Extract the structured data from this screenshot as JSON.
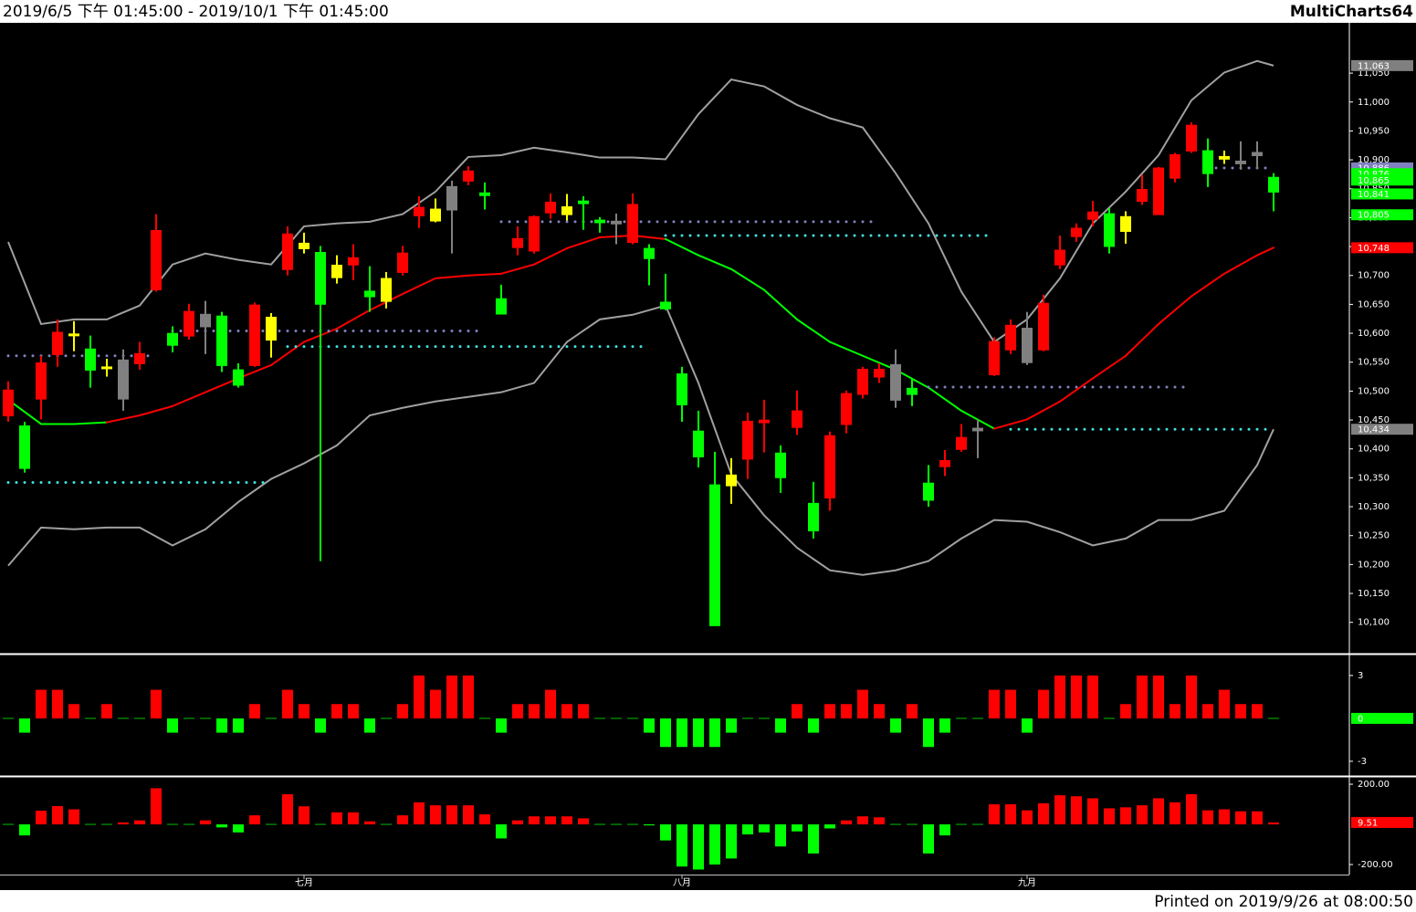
{
  "header": {
    "range": "2019/6/5 下午 01:45:00 - 2019/10/1 下午 01:45:00",
    "app": "MultiCharts64"
  },
  "footer": "Printed on 2019/9/26 at 08:00:50",
  "chart_data": [
    {
      "type": "candlestick",
      "categories": [
        null,
        null,
        null,
        null,
        null,
        null,
        null,
        null,
        null,
        null,
        null,
        null,
        null,
        null,
        null,
        null,
        null,
        null,
        "七月",
        null,
        null,
        null,
        null,
        null,
        null,
        null,
        null,
        null,
        null,
        null,
        null,
        null,
        null,
        null,
        null,
        null,
        null,
        null,
        null,
        null,
        null,
        "八月",
        null,
        null,
        null,
        null,
        null,
        null,
        null,
        null,
        null,
        null,
        null,
        null,
        null,
        null,
        null,
        null,
        null,
        null,
        null,
        null,
        "九月",
        null,
        null,
        null,
        null,
        null,
        null,
        null,
        null,
        null,
        null,
        null,
        null,
        null,
        null,
        null
      ],
      "open": [
        10458,
        10439,
        10487,
        10564,
        10597,
        10572,
        10541,
        10553,
        10548,
        10676,
        10599,
        10596,
        10632,
        10629,
        10536,
        10545,
        10589,
        10711,
        10747,
        10739,
        10697,
        10719,
        10672,
        10656,
        10706,
        10804,
        10795,
        10853,
        10864,
        10842,
        10659,
        10749,
        10743,
        10809,
        10818,
        10828,
        10795,
        10793,
        10758,
        10746,
        10653,
        10529,
        10430,
        10337,
        10337,
        10383,
        10446,
        10392,
        10438,
        10305,
        10316,
        10443,
        10495,
        10525,
        10545,
        10504,
        10340,
        10370,
        10400,
        10435,
        10529,
        10572,
        10608,
        10572,
        10719,
        10768,
        10798,
        10806,
        10777,
        10829,
        10806,
        10869,
        10916,
        10915,
        10902,
        10897,
        10912,
        10869
      ],
      "high": [
        10517,
        10447,
        10561,
        10624,
        10621,
        10596,
        10556,
        10572,
        10585,
        10806,
        10612,
        10651,
        10656,
        10637,
        10548,
        10653,
        10635,
        10785,
        10774,
        10751,
        10735,
        10754,
        10716,
        10706,
        10751,
        10837,
        10833,
        10864,
        10889,
        10861,
        10684,
        10785,
        10804,
        10842,
        10841,
        10837,
        10801,
        10807,
        10842,
        10754,
        10703,
        10542,
        10466,
        10395,
        10384,
        10463,
        10485,
        10406,
        10501,
        10343,
        10430,
        10501,
        10542,
        10548,
        10572,
        10522,
        10372,
        10398,
        10443,
        10451,
        10593,
        10624,
        10637,
        10667,
        10769,
        10790,
        10829,
        10817,
        10811,
        10874,
        10888,
        10912,
        10965,
        10937,
        10916,
        10932,
        10932,
        10877
      ],
      "low": [
        10447,
        10359,
        10451,
        10542,
        10569,
        10506,
        10525,
        10466,
        10537,
        10672,
        10567,
        10589,
        10564,
        10533,
        10506,
        10542,
        10558,
        10700,
        10738,
        10206,
        10686,
        10692,
        10637,
        10643,
        10700,
        10782,
        10792,
        10738,
        10856,
        10814,
        10634,
        10735,
        10738,
        10798,
        10795,
        10779,
        10774,
        10754,
        10754,
        10683,
        10640,
        10447,
        10368,
        10095,
        10305,
        10348,
        10394,
        10324,
        10424,
        10245,
        10293,
        10427,
        10487,
        10514,
        10471,
        10474,
        10300,
        10353,
        10395,
        10384,
        10526,
        10564,
        10545,
        10569,
        10711,
        10758,
        10785,
        10738,
        10755,
        10822,
        10806,
        10861,
        10912,
        10853,
        10893,
        10883,
        10885,
        10811
      ],
      "close": [
        10501,
        10367,
        10548,
        10601,
        10598,
        10537,
        10541,
        10487,
        10564,
        10777,
        10580,
        10637,
        10612,
        10545,
        10511,
        10648,
        10627,
        10771,
        10755,
        10651,
        10717,
        10730,
        10664,
        10694,
        10738,
        10817,
        10814,
        10814,
        10880,
        10839,
        10634,
        10763,
        10801,
        10826,
        10806,
        10825,
        10792,
        10790,
        10822,
        10730,
        10643,
        10477,
        10387,
        10095,
        10354,
        10447,
        10449,
        10351,
        10465,
        10259,
        10422,
        10495,
        10537,
        10537,
        10485,
        10495,
        10312,
        10379,
        10419,
        10432,
        10585,
        10613,
        10550,
        10651,
        10743,
        10781,
        10809,
        10751,
        10801,
        10848,
        10885,
        10908,
        10959,
        10877,
        10905,
        10894,
        10908,
        10845
      ],
      "colors": [
        "#ff0000",
        "#00ff00",
        "#ff0000",
        "#ff0000",
        "#ffff00",
        "#00ff00",
        "#ffff00",
        "#808080",
        "#ff0000",
        "#ff0000",
        "#00ff00",
        "#ff0000",
        "#808080",
        "#00ff00",
        "#00ff00",
        "#ff0000",
        "#ffff00",
        "#ff0000",
        "#ffff00",
        "#00ff00",
        "#ffff00",
        "#ff0000",
        "#00ff00",
        "#ffff00",
        "#ff0000",
        "#ff0000",
        "#ffff00",
        "#808080",
        "#ff0000",
        "#00ff00",
        "#00ff00",
        "#ff0000",
        "#ff0000",
        "#ff0000",
        "#ffff00",
        "#00ff00",
        "#00ff00",
        "#808080",
        "#ff0000",
        "#00ff00",
        "#00ff00",
        "#00ff00",
        "#00ff00",
        "#00ff00",
        "#ffff00",
        "#ff0000",
        "#ff0000",
        "#00ff00",
        "#ff0000",
        "#00ff00",
        "#ff0000",
        "#ff0000",
        "#ff0000",
        "#ff0000",
        "#808080",
        "#00ff00",
        "#00ff00",
        "#ff0000",
        "#ff0000",
        "#808080",
        "#ff0000",
        "#ff0000",
        "#808080",
        "#ff0000",
        "#ff0000",
        "#ff0000",
        "#ff0000",
        "#00ff00",
        "#ffff00",
        "#ff0000",
        "#ff0000",
        "#ff0000",
        "#ff0000",
        "#00ff00",
        "#ffff00",
        "#808080",
        "#808080",
        "#00ff00"
      ],
      "overlays": {
        "x": [
          0,
          2,
          4,
          6,
          8,
          10,
          12,
          14,
          16,
          18,
          20,
          22,
          24,
          26,
          28,
          30,
          32,
          34,
          36,
          38,
          40,
          42,
          44,
          46,
          48,
          50,
          52,
          54,
          56,
          58,
          60,
          62,
          64,
          66,
          68,
          70,
          72,
          74,
          76,
          77
        ],
        "upper": {
          "color": "#a0a0a0",
          "values": [
            10758,
            10616,
            10624,
            10624,
            10648,
            10719,
            10738,
            10727,
            10719,
            10785,
            10790,
            10793,
            10806,
            10845,
            10905,
            10908,
            10921,
            10913,
            10904,
            10904,
            10901,
            10979,
            11039,
            11027,
            10995,
            10972,
            10956,
            10877,
            10790,
            10672,
            10585,
            10624,
            10695,
            10790,
            10845,
            10908,
            11003,
            11051,
            11071,
            11063
          ]
        },
        "lower": {
          "color": "#a0a0a0",
          "values": [
            10198,
            10264,
            10261,
            10264,
            10264,
            10233,
            10261,
            10308,
            10348,
            10375,
            10406,
            10458,
            10471,
            10482,
            10490,
            10498,
            10514,
            10585,
            10624,
            10632,
            10648,
            10514,
            10356,
            10285,
            10229,
            10190,
            10182,
            10190,
            10206,
            10245,
            10277,
            10274,
            10256,
            10233,
            10245,
            10277,
            10277,
            10293,
            10372,
            10434
          ]
        },
        "ma": {
          "values": [
            10485,
            10443,
            10443,
            10446,
            10458,
            10474,
            10498,
            10522,
            10545,
            10585,
            10608,
            10640,
            10668,
            10695,
            10700,
            10703,
            10719,
            10747,
            10766,
            10769,
            10763,
            10735,
            10711,
            10675,
            10624,
            10585,
            10561,
            10537,
            10506,
            10466,
            10435,
            10451,
            10482,
            10522,
            10561,
            10616,
            10664,
            10703,
            10735,
            10748
          ],
          "colors": [
            "#00ff00",
            "#00ff00",
            "#00ff00",
            "#ff0000",
            "#ff0000",
            "#ff0000",
            "#ff0000",
            "#ff0000",
            "#ff0000",
            "#ff0000",
            "#ff0000",
            "#ff0000",
            "#ff0000",
            "#ff0000",
            "#ff0000",
            "#ff0000",
            "#ff0000",
            "#ff0000",
            "#ff0000",
            "#ff0000",
            "#00ff00",
            "#00ff00",
            "#00ff00",
            "#00ff00",
            "#00ff00",
            "#00ff00",
            "#00ff00",
            "#00ff00",
            "#00ff00",
            "#00ff00",
            "#ff0000",
            "#ff0000",
            "#ff0000",
            "#ff0000",
            "#ff0000",
            "#ff0000",
            "#ff0000",
            "#ff0000",
            "#ff0000",
            "#ff0000"
          ]
        }
      },
      "levels": [
        {
          "start": 0,
          "end": 9,
          "value": 10561,
          "color": "#8080c0"
        },
        {
          "start": 0,
          "end": 16,
          "value": 10342,
          "color": "#40e0e0"
        },
        {
          "start": 10,
          "end": 29,
          "value": 10604,
          "color": "#8080c0"
        },
        {
          "start": 17,
          "end": 39,
          "value": 10577,
          "color": "#40e0e0"
        },
        {
          "start": 30,
          "end": 53,
          "value": 10793,
          "color": "#8080c0"
        },
        {
          "start": 40,
          "end": 60,
          "value": 10769,
          "color": "#40e0e0"
        },
        {
          "start": 56,
          "end": 72,
          "value": 10507,
          "color": "#8080c0"
        },
        {
          "start": 61,
          "end": 77,
          "value": 10434,
          "color": "#40e0e0"
        },
        {
          "start": 73,
          "end": 77,
          "value": 10886,
          "color": "#8080c0"
        }
      ],
      "axis_labels": [
        {
          "value": 11063,
          "label": "11,063",
          "color": "#808080"
        },
        {
          "value": 10886,
          "label": "10,886",
          "color": "#8080c0"
        },
        {
          "value": 10876,
          "label": "10,876",
          "color": "#00ff00"
        },
        {
          "value": 10865,
          "label": "10,865",
          "color": "#00ff00"
        },
        {
          "value": 10841,
          "label": "10,841",
          "color": "#00ff00"
        },
        {
          "value": 10805,
          "label": "10,805",
          "color": "#00ff00"
        },
        {
          "value": 10748,
          "label": "10,748",
          "color": "#ff0000"
        },
        {
          "value": 10434,
          "label": "10,434",
          "color": "#808080"
        }
      ],
      "ylim": [
        10049,
        11137
      ],
      "yticks": [
        {
          "value": 10100,
          "label": "10,100"
        },
        {
          "value": 10150,
          "label": "10,150"
        },
        {
          "value": 10200,
          "label": "10,200"
        },
        {
          "value": 10250,
          "label": "10,250"
        },
        {
          "value": 10300,
          "label": "10,300"
        },
        {
          "value": 10350,
          "label": "10,350"
        },
        {
          "value": 10400,
          "label": "10,400"
        },
        {
          "value": 10450,
          "label": "10,450"
        },
        {
          "value": 10500,
          "label": "10,500"
        },
        {
          "value": 10550,
          "label": "10,550"
        },
        {
          "value": 10600,
          "label": "10,600"
        },
        {
          "value": 10650,
          "label": "10,650"
        },
        {
          "value": 10700,
          "label": "10,700"
        },
        {
          "value": 10750,
          "label": "10,750"
        },
        {
          "value": 10800,
          "label": "10,800"
        },
        {
          "value": 10850,
          "label": "10,850"
        },
        {
          "value": 10900,
          "label": "10,900"
        },
        {
          "value": 10950,
          "label": "10,950"
        },
        {
          "value": 11000,
          "label": "11,000"
        },
        {
          "value": 11050,
          "label": "11,050"
        }
      ]
    },
    {
      "type": "bar",
      "up_color": "#ff0000",
      "down_color": "#00ff00",
      "zero_color": "#00c000",
      "values": [
        0,
        -1,
        2,
        2,
        1,
        0,
        1,
        0,
        0,
        2,
        -1,
        0,
        0,
        -1,
        -1,
        1,
        0,
        2,
        1,
        -1,
        1,
        1,
        -1,
        0,
        1,
        3,
        2,
        3,
        3,
        0,
        -1,
        1,
        1,
        2,
        1,
        1,
        0,
        0,
        0,
        -1,
        -2,
        -2,
        -2,
        -2,
        -1,
        0,
        0,
        -1,
        1,
        -1,
        1,
        1,
        2,
        1,
        -1,
        1,
        -2,
        -1,
        0,
        0,
        2,
        2,
        -1,
        2,
        3,
        3,
        3,
        0,
        1,
        3,
        3,
        1,
        3,
        1,
        2,
        1,
        1,
        0
      ],
      "ylim": [
        -3.9,
        4.4
      ],
      "yticks": [
        3,
        -3
      ]
    },
    {
      "type": "bar",
      "up_color": "#ff0000",
      "down_color": "#00ff00",
      "zero_color": "#00c000",
      "values": [
        0,
        -55,
        68,
        91,
        75,
        0,
        0,
        10,
        20,
        180,
        0,
        0,
        20,
        -15,
        -40,
        45,
        0,
        150,
        90,
        0,
        60,
        60,
        15,
        0,
        45,
        110,
        95,
        95,
        95,
        50,
        -70,
        20,
        40,
        40,
        40,
        30,
        0,
        0,
        0,
        -5,
        -80,
        -210,
        -225,
        -200,
        -170,
        -50,
        -40,
        -110,
        -35,
        -145,
        -20,
        20,
        40,
        35,
        0,
        0,
        -145,
        -55,
        0,
        0,
        100,
        100,
        70,
        105,
        145,
        140,
        130,
        80,
        85,
        95,
        130,
        110,
        150,
        70,
        75,
        65,
        65,
        9.51
      ],
      "ylim": [
        -250,
        232
      ],
      "yticks": [
        {
          "value": 200,
          "label": "200.00"
        },
        {
          "value": -200,
          "label": "-200.00"
        }
      ]
    }
  ]
}
